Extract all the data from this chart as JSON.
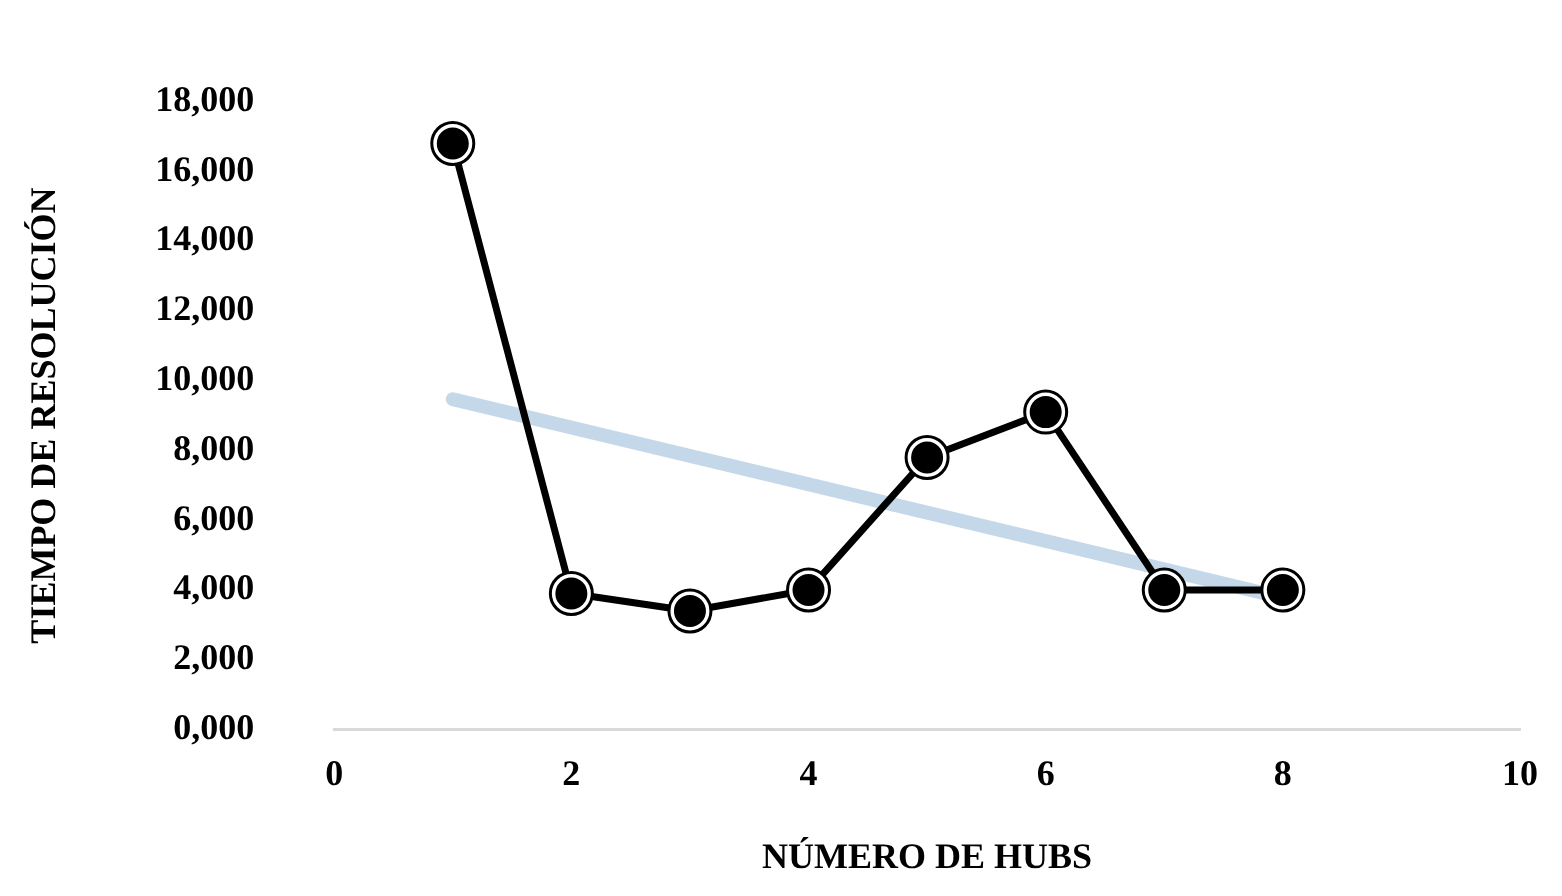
{
  "chart_data": {
    "type": "line",
    "xlabel": "NÚMERO DE HUBS",
    "ylabel": "TIEMPO DE RESOLUCIÓN",
    "x": [
      1,
      2,
      3,
      4,
      5,
      6,
      7,
      8
    ],
    "series": [
      {
        "type": "line",
        "color": "#000000",
        "values": [
          16800,
          3900,
          3400,
          4000,
          7800,
          9100,
          4000,
          4000
        ],
        "marker": "circle"
      },
      {
        "type": "line",
        "color": "#c5d8ea",
        "x": [
          1,
          8
        ],
        "values": [
          9470,
          3780
        ]
      }
    ],
    "xlim": [
      0,
      10
    ],
    "xticks": [
      0,
      2,
      4,
      6,
      8,
      10
    ],
    "ylim": [
      0,
      18000
    ],
    "yticks": [
      {
        "value": 0,
        "label": "0,000"
      },
      {
        "value": 2000,
        "label": "2,000"
      },
      {
        "value": 4000,
        "label": "4,000"
      },
      {
        "value": 6000,
        "label": "6,000"
      },
      {
        "value": 8000,
        "label": "8,000"
      },
      {
        "value": 10000,
        "label": "10,000"
      },
      {
        "value": 12000,
        "label": "12,000"
      },
      {
        "value": 14000,
        "label": "14,000"
      },
      {
        "value": 16000,
        "label": "16,000"
      },
      {
        "value": 18000,
        "label": "18,000"
      }
    ],
    "grid": false,
    "legend": false
  }
}
